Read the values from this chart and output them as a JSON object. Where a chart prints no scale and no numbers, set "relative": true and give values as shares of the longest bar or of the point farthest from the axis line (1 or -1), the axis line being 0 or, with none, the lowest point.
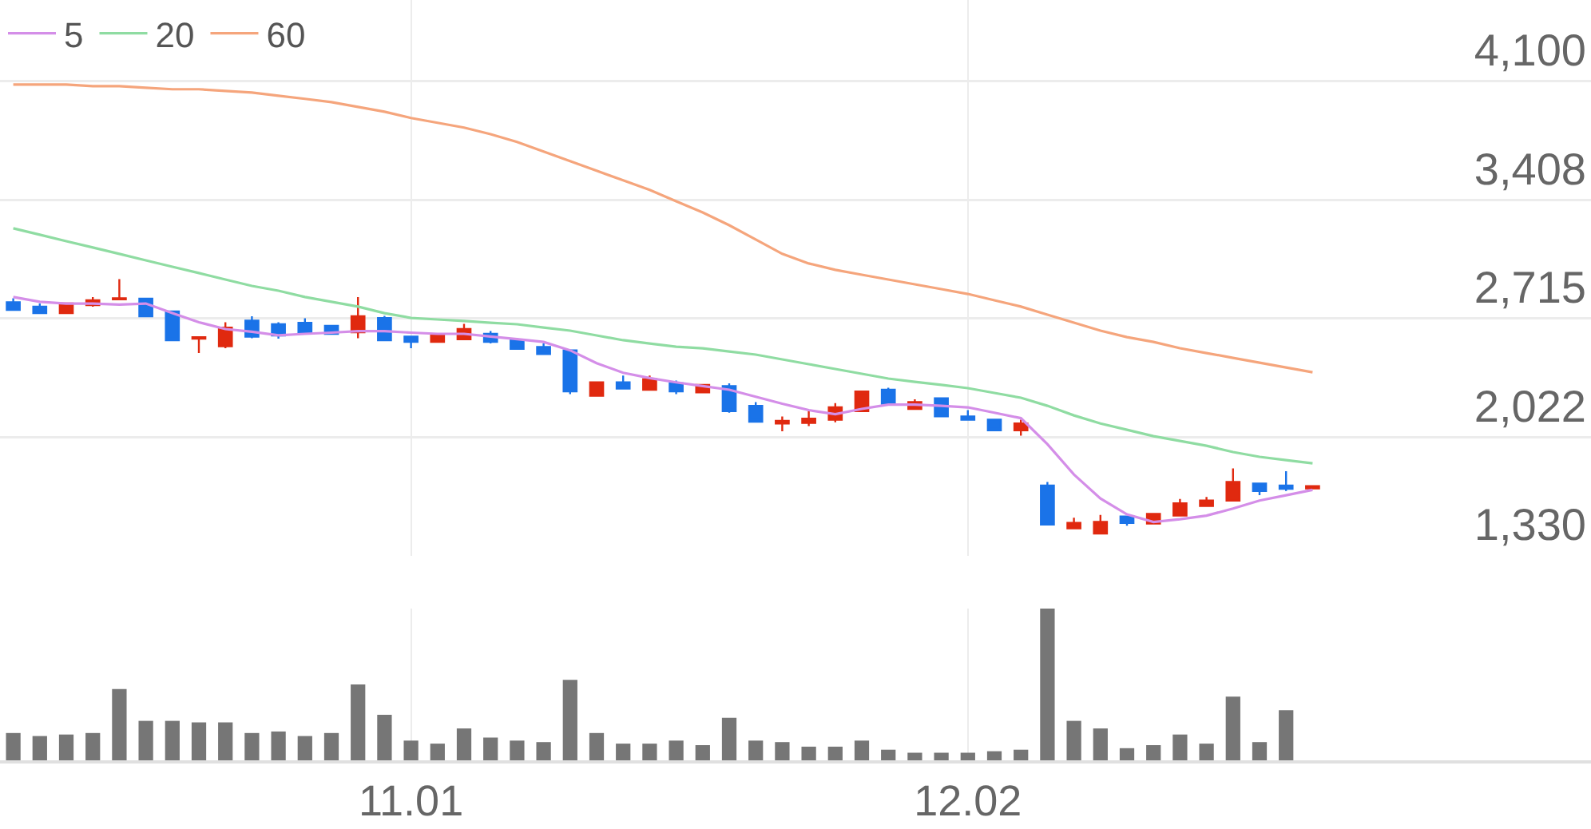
{
  "chart_data": [
    {
      "type": "candlestick",
      "categories": [
        null,
        null,
        null,
        null,
        null,
        null,
        null,
        null,
        null,
        null,
        null,
        null,
        null,
        null,
        null,
        "11.01",
        null,
        null,
        null,
        null,
        null,
        null,
        null,
        null,
        null,
        null,
        null,
        null,
        null,
        null,
        null,
        null,
        null,
        null,
        null,
        null,
        "12.02",
        null,
        null,
        null,
        null,
        null,
        null,
        null,
        null,
        null,
        null,
        null,
        null,
        null
      ],
      "ohlc": [
        [
          2810,
          2834,
          2766,
          2766
        ],
        [
          2785,
          2803,
          2741,
          2747
        ],
        [
          2747,
          2803,
          2747,
          2803
        ],
        [
          2794,
          2841,
          2785,
          2822
        ],
        [
          2827,
          2946,
          2827,
          2834
        ],
        [
          2831,
          2831,
          2729,
          2729
        ],
        [
          2757,
          2757,
          2589,
          2589
        ],
        [
          2598,
          2610,
          2514,
          2607
        ],
        [
          2554,
          2694,
          2542,
          2663
        ],
        [
          2703,
          2729,
          2601,
          2610
        ],
        [
          2682,
          2694,
          2598,
          2617
        ],
        [
          2691,
          2717,
          2635,
          2635
        ],
        [
          2673,
          2679,
          2626,
          2626
        ],
        [
          2635,
          2841,
          2601,
          2729
        ],
        [
          2719,
          2731,
          2589,
          2589
        ],
        [
          2610,
          2610,
          2542,
          2579
        ],
        [
          2579,
          2626,
          2579,
          2617
        ],
        [
          2595,
          2685,
          2595,
          2654
        ],
        [
          2626,
          2642,
          2570,
          2579
        ],
        [
          2591,
          2601,
          2539,
          2539
        ],
        [
          2549,
          2570,
          2508,
          2508
        ],
        [
          2530,
          2530,
          2274,
          2290
        ],
        [
          2265,
          2343,
          2265,
          2343
        ],
        [
          2343,
          2383,
          2306,
          2306
        ],
        [
          2300,
          2383,
          2300,
          2362
        ],
        [
          2337,
          2353,
          2274,
          2290
        ],
        [
          2284,
          2328,
          2284,
          2328
        ],
        [
          2321,
          2337,
          2166,
          2175
        ],
        [
          2206,
          2228,
          2113,
          2113
        ],
        [
          2103,
          2144,
          2057,
          2118
        ],
        [
          2106,
          2175,
          2088,
          2131
        ],
        [
          2125,
          2222,
          2110,
          2197
        ],
        [
          2175,
          2290,
          2175,
          2290
        ],
        [
          2300,
          2312,
          2218,
          2218
        ],
        [
          2188,
          2244,
          2188,
          2228
        ],
        [
          2250,
          2250,
          2144,
          2144
        ],
        [
          2144,
          2181,
          2125,
          2125
        ],
        [
          2125,
          2125,
          2063,
          2063
        ],
        [
          2063,
          2125,
          2032,
          2103
        ],
        [
          1740,
          1761,
          1513,
          1513
        ],
        [
          1491,
          1553,
          1491,
          1522
        ],
        [
          1460,
          1569,
          1460,
          1528
        ],
        [
          1560,
          1560,
          1506,
          1522
        ],
        [
          1519,
          1575,
          1519,
          1575
        ],
        [
          1565,
          1662,
          1565,
          1637
        ],
        [
          1621,
          1674,
          1621,
          1653
        ],
        [
          1653,
          1840,
          1653,
          1761
        ],
        [
          1752,
          1752,
          1684,
          1709
        ],
        [
          1740,
          1824,
          1709,
          1721
        ],
        [
          1724,
          1737,
          1724,
          1737
        ]
      ],
      "series": [
        {
          "name": "5",
          "type": "line",
          "color": "#d48ee8",
          "values": [
            2841,
            2813,
            2803,
            2803,
            2797,
            2803,
            2747,
            2694,
            2654,
            2638,
            2617,
            2626,
            2633,
            2642,
            2642,
            2633,
            2626,
            2626,
            2610,
            2595,
            2579,
            2530,
            2455,
            2399,
            2368,
            2343,
            2321,
            2300,
            2259,
            2218,
            2181,
            2157,
            2188,
            2213,
            2213,
            2206,
            2197,
            2166,
            2134,
            1982,
            1805,
            1665,
            1572,
            1528,
            1544,
            1565,
            1606,
            1653,
            1684,
            1715
          ]
        },
        {
          "name": "20",
          "type": "line",
          "color": "#8fdca2",
          "values": [
            3242,
            3205,
            3167,
            3130,
            3093,
            3055,
            3018,
            2981,
            2943,
            2906,
            2878,
            2841,
            2813,
            2785,
            2747,
            2719,
            2710,
            2701,
            2691,
            2682,
            2663,
            2645,
            2617,
            2589,
            2570,
            2551,
            2542,
            2523,
            2505,
            2477,
            2449,
            2421,
            2393,
            2365,
            2346,
            2328,
            2309,
            2281,
            2253,
            2206,
            2150,
            2103,
            2066,
            2029,
            2001,
            1973,
            1936,
            1908,
            1889,
            1870
          ]
        },
        {
          "name": "60",
          "type": "line",
          "color": "#f5a57c",
          "values": [
            4081,
            4081,
            4081,
            4072,
            4072,
            4063,
            4054,
            4054,
            4044,
            4035,
            4016,
            3998,
            3979,
            3951,
            3923,
            3886,
            3858,
            3830,
            3792,
            3746,
            3690,
            3634,
            3578,
            3522,
            3466,
            3400,
            3335,
            3260,
            3177,
            3093,
            3037,
            3000,
            2971,
            2943,
            2915,
            2887,
            2859,
            2822,
            2785,
            2738,
            2691,
            2645,
            2607,
            2579,
            2542,
            2514,
            2486,
            2458,
            2430,
            2402
          ]
        }
      ],
      "ylim": [
        1330,
        4575
      ],
      "yticks": [
        {
          "value": 4100,
          "label": "4,100"
        },
        {
          "value": 3408,
          "label": "3,408"
        },
        {
          "value": 2715,
          "label": "2,715"
        },
        {
          "value": 2022,
          "label": "2,022"
        },
        {
          "value": 1330,
          "label": "1,330"
        }
      ],
      "grid": true,
      "legend": "top left",
      "tick_labels": "y"
    },
    {
      "type": "bar",
      "categories": [
        null,
        null,
        null,
        null,
        null,
        null,
        null,
        null,
        null,
        null,
        null,
        null,
        null,
        null,
        null,
        "11.01",
        null,
        null,
        null,
        null,
        null,
        null,
        null,
        null,
        null,
        null,
        null,
        null,
        null,
        null,
        null,
        null,
        null,
        null,
        null,
        null,
        "12.02",
        null,
        null,
        null,
        null,
        null,
        null,
        null,
        null,
        null,
        null,
        null,
        null,
        null
      ],
      "values": [
        0.18,
        0.16,
        0.17,
        0.18,
        0.47,
        0.26,
        0.26,
        0.25,
        0.25,
        0.18,
        0.19,
        0.16,
        0.18,
        0.5,
        0.3,
        0.13,
        0.11,
        0.21,
        0.15,
        0.13,
        0.12,
        0.53,
        0.18,
        0.11,
        0.11,
        0.13,
        0.1,
        0.28,
        0.13,
        0.12,
        0.09,
        0.09,
        0.13,
        0.07,
        0.05,
        0.05,
        0.05,
        0.06,
        0.07,
        1,
        0.26,
        0.21,
        0.08,
        0.1,
        0.17,
        0.11,
        0.42,
        0.12,
        0.33,
        null
      ],
      "color": "#767676",
      "relative": true,
      "grid": "x",
      "tick_labels": "x"
    }
  ]
}
